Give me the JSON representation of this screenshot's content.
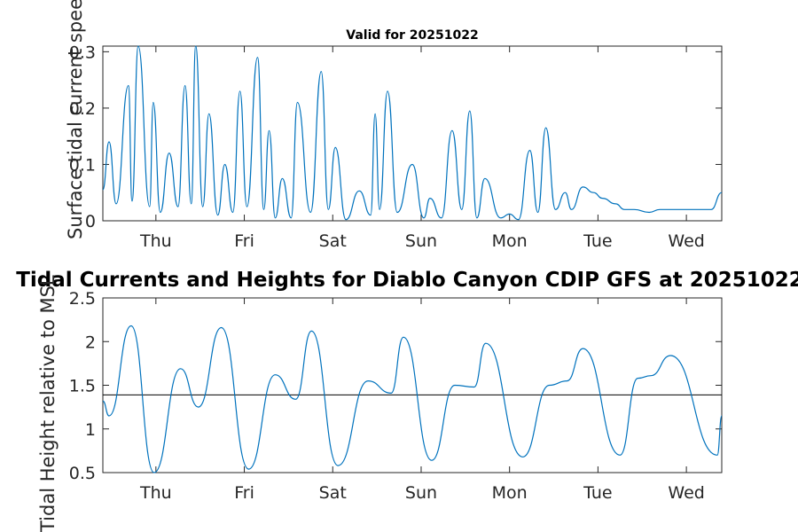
{
  "figure": {
    "top_title": "Valid for 20251022",
    "main_title": "Tidal Currents and Heights for Diablo Canyon CDIP GFS at 20251022"
  },
  "chart_data": [
    {
      "type": "line",
      "title": "Valid for 20251022",
      "ylabel": "Surface tidal current speed, knots",
      "xlabel": "",
      "xlim": [
        0.4,
        7.4
      ],
      "ylim": [
        0,
        0.31
      ],
      "yticks": [
        0,
        0.1,
        0.2,
        0.3
      ],
      "ytick_labels": [
        "0",
        "0.1",
        "0.2",
        "0.3"
      ],
      "xticks": [
        1,
        2,
        3,
        4,
        5,
        6,
        7
      ],
      "xtick_labels": [
        "Thu",
        "Fri",
        "Sat",
        "Sun",
        "Mon",
        "Tue",
        "Wed"
      ],
      "series": [
        {
          "name": "current speed",
          "color": "#0072bd",
          "x": [
            0.4,
            0.47,
            0.55,
            0.69,
            0.73,
            0.8,
            0.93,
            0.97,
            1.05,
            1.15,
            1.25,
            1.33,
            1.4,
            1.45,
            1.53,
            1.6,
            1.7,
            1.78,
            1.87,
            1.95,
            2.03,
            2.15,
            2.22,
            2.28,
            2.35,
            2.43,
            2.53,
            2.6,
            2.75,
            2.87,
            2.95,
            3.03,
            3.15,
            3.3,
            3.43,
            3.48,
            3.53,
            3.62,
            3.73,
            3.9,
            4.03,
            4.1,
            4.23,
            4.35,
            4.46,
            4.55,
            4.63,
            4.72,
            4.9,
            5.0,
            5.1,
            5.23,
            5.32,
            5.41,
            5.52,
            5.63,
            5.7,
            5.83,
            5.95,
            6.05,
            6.2,
            6.3,
            6.41,
            6.58,
            6.7,
            6.85,
            6.95,
            7.05,
            7.17,
            7.28,
            7.4
          ],
          "y": [
            0.055,
            0.14,
            0.03,
            0.24,
            0.035,
            0.31,
            0.025,
            0.21,
            0.015,
            0.12,
            0.025,
            0.24,
            0.03,
            0.31,
            0.025,
            0.19,
            0.01,
            0.1,
            0.015,
            0.23,
            0.025,
            0.29,
            0.02,
            0.16,
            0.005,
            0.075,
            0.005,
            0.21,
            0.015,
            0.265,
            0.02,
            0.13,
            0.002,
            0.053,
            0.01,
            0.19,
            0.02,
            0.23,
            0.015,
            0.1,
            0.005,
            0.04,
            0.005,
            0.16,
            0.02,
            0.195,
            0.005,
            0.075,
            0.005,
            0.012,
            0.002,
            0.125,
            0.015,
            0.165,
            0.02,
            0.05,
            0.02,
            0.06,
            0.05,
            0.04,
            0.03,
            0.02,
            0.02,
            0.015,
            0.02,
            0.02,
            0.02,
            0.02,
            0.02,
            0.02,
            0.05
          ]
        }
      ]
    },
    {
      "type": "line",
      "title": "Tidal Currents and Heights for Diablo Canyon CDIP GFS at 20251022",
      "ylabel": "Tidal Height relative to MSL",
      "xlabel": "",
      "xlim": [
        0.4,
        7.4
      ],
      "ylim": [
        0.5,
        2.5
      ],
      "yticks": [
        0.5,
        1,
        1.5,
        2,
        2.5
      ],
      "ytick_labels": [
        "0.5",
        "1",
        "1.5",
        "2",
        "2.5"
      ],
      "xticks": [
        1,
        2,
        3,
        4,
        5,
        6,
        7
      ],
      "xtick_labels": [
        "Thu",
        "Fri",
        "Sat",
        "Sun",
        "Mon",
        "Tue",
        "Wed"
      ],
      "reference_line": 1.39,
      "series": [
        {
          "name": "tidal height",
          "color": "#0072bd",
          "x": [
            0.4,
            0.47,
            0.72,
            0.98,
            1.28,
            1.48,
            1.74,
            2.05,
            2.35,
            2.58,
            2.76,
            3.06,
            3.4,
            3.66,
            3.8,
            4.12,
            4.38,
            4.6,
            4.73,
            5.15,
            5.45,
            5.65,
            5.83,
            6.25,
            6.45,
            6.6,
            6.82,
            7.35,
            7.4
          ],
          "y": [
            1.32,
            1.15,
            2.18,
            0.5,
            1.69,
            1.25,
            2.16,
            0.54,
            1.62,
            1.34,
            2.12,
            0.58,
            1.55,
            1.41,
            2.05,
            0.64,
            1.5,
            1.48,
            1.98,
            0.68,
            1.5,
            1.55,
            1.92,
            0.7,
            1.58,
            1.61,
            1.84,
            0.7,
            1.15
          ]
        }
      ]
    }
  ]
}
